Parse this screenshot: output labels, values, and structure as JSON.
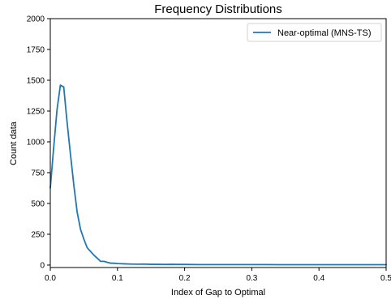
{
  "chart_data": {
    "type": "line",
    "title": "Frequency Distributions",
    "xlabel": "Index of Gap to Optimal",
    "ylabel": "Count data",
    "xlim": [
      0.0,
      0.5
    ],
    "ylim": [
      -20,
      2000
    ],
    "xticks": [
      0.0,
      0.1,
      0.2,
      0.3,
      0.4,
      0.5
    ],
    "xtick_labels": [
      "0.0",
      "0.1",
      "0.2",
      "0.3",
      "0.4",
      "0.5"
    ],
    "yticks": [
      0,
      250,
      500,
      750,
      1000,
      1250,
      1500,
      1750,
      2000
    ],
    "ytick_labels": [
      "0",
      "250",
      "500",
      "750",
      "1000",
      "1250",
      "1500",
      "1750",
      "2000"
    ],
    "grid": false,
    "legend_position": "top-right",
    "series": [
      {
        "name": "Near-optimal (MNS-TS)",
        "color": "#1f77b4",
        "x": [
          0.0,
          0.005,
          0.01,
          0.015,
          0.02,
          0.025,
          0.03,
          0.035,
          0.04,
          0.045,
          0.05,
          0.055,
          0.06,
          0.065,
          0.07,
          0.075,
          0.08,
          0.085,
          0.09,
          0.095,
          0.1,
          0.11,
          0.12,
          0.13,
          0.14,
          0.15,
          0.16,
          0.17,
          0.18,
          0.19,
          0.2,
          0.22,
          0.24,
          0.26,
          0.28,
          0.3,
          0.32,
          0.34,
          0.36,
          0.38,
          0.4,
          0.42,
          0.44,
          0.46,
          0.48,
          0.5
        ],
        "y": [
          625,
          950,
          1260,
          1460,
          1445,
          1160,
          900,
          650,
          430,
          290,
          210,
          140,
          110,
          80,
          55,
          30,
          30,
          22,
          15,
          15,
          12,
          10,
          8,
          7,
          8,
          6,
          6,
          5,
          6,
          5,
          5,
          4,
          4,
          4,
          4,
          4,
          4,
          3,
          3,
          3,
          3,
          3,
          3,
          3,
          3,
          3
        ]
      }
    ]
  }
}
